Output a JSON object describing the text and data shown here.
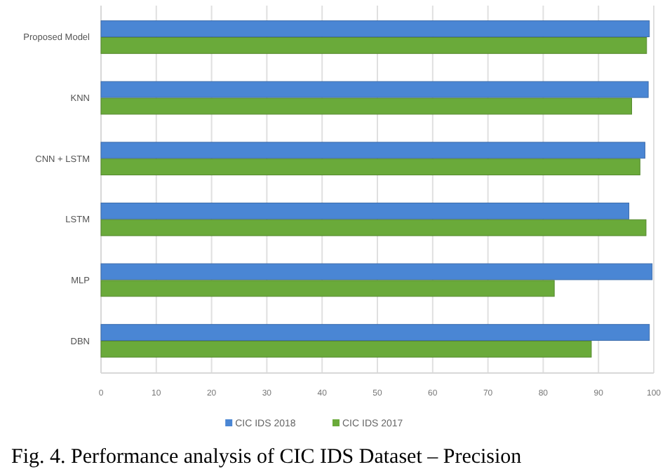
{
  "chart_data": {
    "type": "bar",
    "orientation": "horizontal",
    "title": "Fig. 4.   Performance analysis of CIC IDS Dataset – Precision",
    "categories": [
      "Proposed Model",
      "KNN",
      "CNN + LSTM",
      "LSTM",
      "MLP",
      "DBN"
    ],
    "series": [
      {
        "name": "CIC IDS 2018",
        "color": "#4a86d4",
        "values": [
          99.2,
          99,
          98.4,
          95.5,
          99.7,
          99.2
        ]
      },
      {
        "name": "CIC IDS 2017",
        "color": "#6aaa3a",
        "values": [
          98.7,
          96,
          97.5,
          98.6,
          82,
          88.7
        ]
      }
    ],
    "xlim": [
      0,
      100
    ],
    "xticks": [
      0,
      10,
      20,
      30,
      40,
      50,
      60,
      70,
      80,
      90,
      100
    ],
    "grid": "x",
    "legend": "bottom"
  }
}
